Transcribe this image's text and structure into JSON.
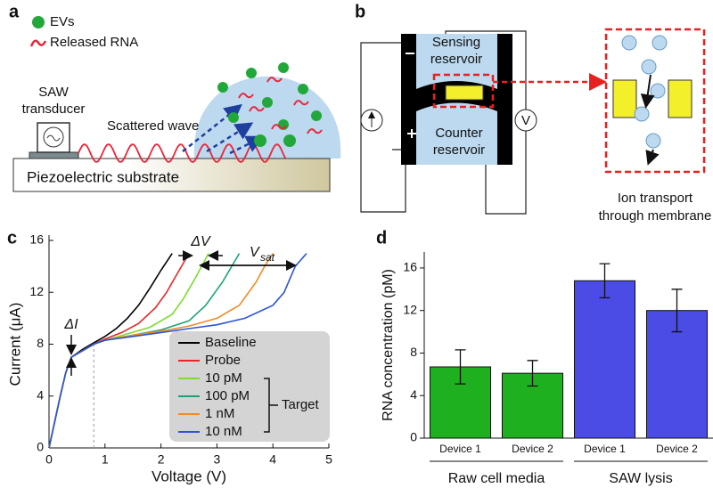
{
  "panel_a": {
    "label": "a",
    "legend": [
      "EVs",
      "Released RNA"
    ],
    "transducer_label": [
      "SAW",
      "transducer"
    ],
    "wave_label": "Scattered wave",
    "substrate_label": "Piezoelectric substrate"
  },
  "panel_b": {
    "label": "b",
    "sensing_label": [
      "Sensing",
      "reservoir"
    ],
    "counter_label": [
      "Counter",
      "reservoir"
    ],
    "meter_label": "V",
    "inset_label": [
      "Ion transport",
      "through membrane"
    ]
  },
  "chart_data": [
    {
      "type": "line",
      "panel_label": "c",
      "xlabel": "Voltage (V)",
      "ylabel": "Current (μA)",
      "xlim": [
        0,
        5
      ],
      "ylim": [
        0,
        16
      ],
      "xticks": [
        0,
        1,
        2,
        3,
        4,
        5
      ],
      "yticks": [
        0,
        4,
        8,
        12,
        16
      ],
      "grid": false,
      "series": [
        {
          "name": "Baseline",
          "color": "#000000",
          "x": [
            0,
            0.1,
            0.2,
            0.3,
            0.4,
            0.6,
            0.8,
            1.0,
            1.2,
            1.4,
            1.6,
            1.8,
            2.0,
            2.2
          ],
          "values": [
            0,
            2,
            4,
            5.8,
            7,
            7.6,
            8.1,
            8.6,
            9.2,
            10,
            11,
            12.3,
            13.7,
            15
          ]
        },
        {
          "name": "Probe",
          "color": "#e8262a",
          "x": [
            0,
            0.1,
            0.2,
            0.3,
            0.4,
            0.6,
            0.8,
            1.0,
            1.3,
            1.6,
            1.9,
            2.1,
            2.3,
            2.5
          ],
          "values": [
            0,
            2,
            4,
            5.8,
            7,
            7.5,
            8,
            8.4,
            8.9,
            9.6,
            10.8,
            12,
            13.5,
            15
          ]
        },
        {
          "name": "10 pM",
          "color": "#7ddc2e",
          "x": [
            0,
            0.1,
            0.2,
            0.3,
            0.4,
            0.6,
            0.8,
            1.0,
            1.4,
            1.8,
            2.2,
            2.4,
            2.6,
            2.85
          ],
          "values": [
            0,
            2,
            4,
            5.8,
            7,
            7.5,
            8,
            8.3,
            8.8,
            9.3,
            10.3,
            11.5,
            13,
            15
          ]
        },
        {
          "name": "100 pM",
          "color": "#1aa37a",
          "x": [
            0,
            0.1,
            0.2,
            0.3,
            0.4,
            0.6,
            0.8,
            1.0,
            1.5,
            2.0,
            2.5,
            2.8,
            3.1,
            3.4
          ],
          "values": [
            0,
            2,
            4,
            5.8,
            7,
            7.5,
            8,
            8.3,
            8.7,
            9.1,
            9.8,
            11,
            12.8,
            15
          ]
        },
        {
          "name": "1 nM",
          "color": "#f58a1f",
          "x": [
            0,
            0.1,
            0.2,
            0.3,
            0.4,
            0.6,
            0.8,
            1.0,
            1.5,
            2.0,
            2.5,
            3.0,
            3.4,
            3.7,
            3.85,
            4.0
          ],
          "values": [
            0,
            2,
            4,
            5.8,
            7,
            7.5,
            8,
            8.3,
            8.7,
            9.0,
            9.4,
            10,
            11,
            12.8,
            14,
            15
          ]
        },
        {
          "name": "10 nM",
          "color": "#2b55d6",
          "x": [
            0,
            0.1,
            0.2,
            0.3,
            0.4,
            0.6,
            0.8,
            1.0,
            1.5,
            2.0,
            2.5,
            3.0,
            3.5,
            4.0,
            4.2,
            4.3,
            4.4,
            4.6
          ],
          "values": [
            0,
            2,
            4,
            5.8,
            7,
            7.5,
            8,
            8.3,
            8.6,
            8.9,
            9.2,
            9.5,
            10,
            11,
            12,
            13,
            14,
            15
          ]
        }
      ],
      "legend_group_label": "Target",
      "annotations": [
        {
          "text": "ΔI"
        },
        {
          "text": "ΔV"
        },
        {
          "text": "V",
          "sub": "sat"
        }
      ]
    },
    {
      "type": "bar",
      "panel_label": "d",
      "ylabel": "RNA concentration (pM)",
      "ylim": [
        0,
        17.5
      ],
      "yticks": [
        0,
        4,
        8,
        12,
        16
      ],
      "categories": [
        "Device 1",
        "Device 2",
        "Device 1",
        "Device 2"
      ],
      "group_labels": [
        "Raw cell media",
        "SAW lysis"
      ],
      "values": [
        6.7,
        6.1,
        14.8,
        12
      ],
      "errors": [
        1.6,
        1.2,
        1.6,
        2
      ],
      "colors": [
        "#1fb01f",
        "#1fb01f",
        "#4b4be6",
        "#4b4be6"
      ]
    }
  ]
}
